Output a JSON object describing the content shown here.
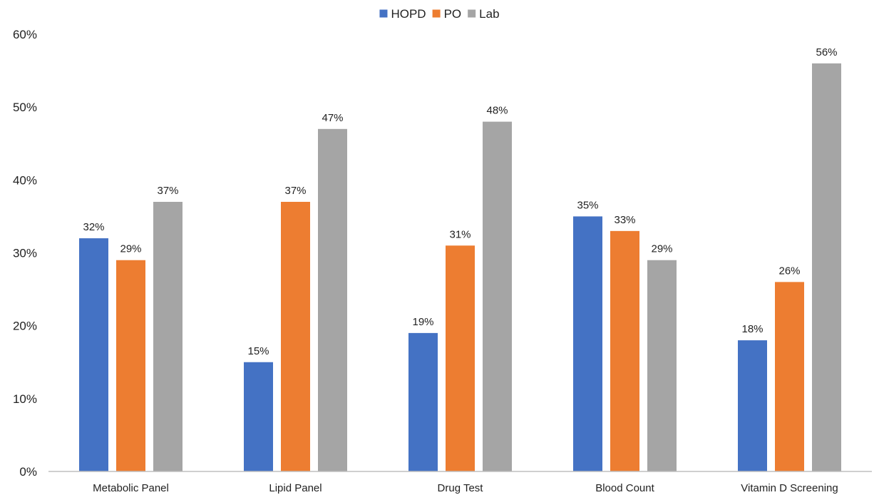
{
  "chart_data": {
    "type": "bar",
    "title": "",
    "xlabel": "",
    "ylabel": "",
    "categories": [
      "Metabolic Panel",
      "Lipid Panel",
      "Drug Test",
      "Blood Count",
      "Vitamin D Screening"
    ],
    "series": [
      {
        "name": "HOPD",
        "color": "#4472C4",
        "values": [
          32,
          15,
          19,
          35,
          18
        ],
        "labels": [
          "32%",
          "15%",
          "19%",
          "35%",
          "18%"
        ]
      },
      {
        "name": "PO",
        "color": "#ED7D31",
        "values": [
          29,
          37,
          31,
          33,
          26
        ],
        "labels": [
          "29%",
          "37%",
          "31%",
          "33%",
          "26%"
        ]
      },
      {
        "name": "Lab",
        "color": "#A5A5A5",
        "values": [
          37,
          47,
          48,
          29,
          56
        ],
        "labels": [
          "37%",
          "47%",
          "48%",
          "29%",
          "56%"
        ]
      }
    ],
    "ylim": [
      0,
      60
    ],
    "yticks": [
      {
        "value": 0,
        "label": "0%"
      },
      {
        "value": 10,
        "label": "10%"
      },
      {
        "value": 20,
        "label": "20%"
      },
      {
        "value": 30,
        "label": "30%"
      },
      {
        "value": 40,
        "label": "40%"
      },
      {
        "value": 50,
        "label": "50%"
      },
      {
        "value": 60,
        "label": "60%"
      }
    ],
    "grid": false,
    "legend_position": "top-center"
  }
}
